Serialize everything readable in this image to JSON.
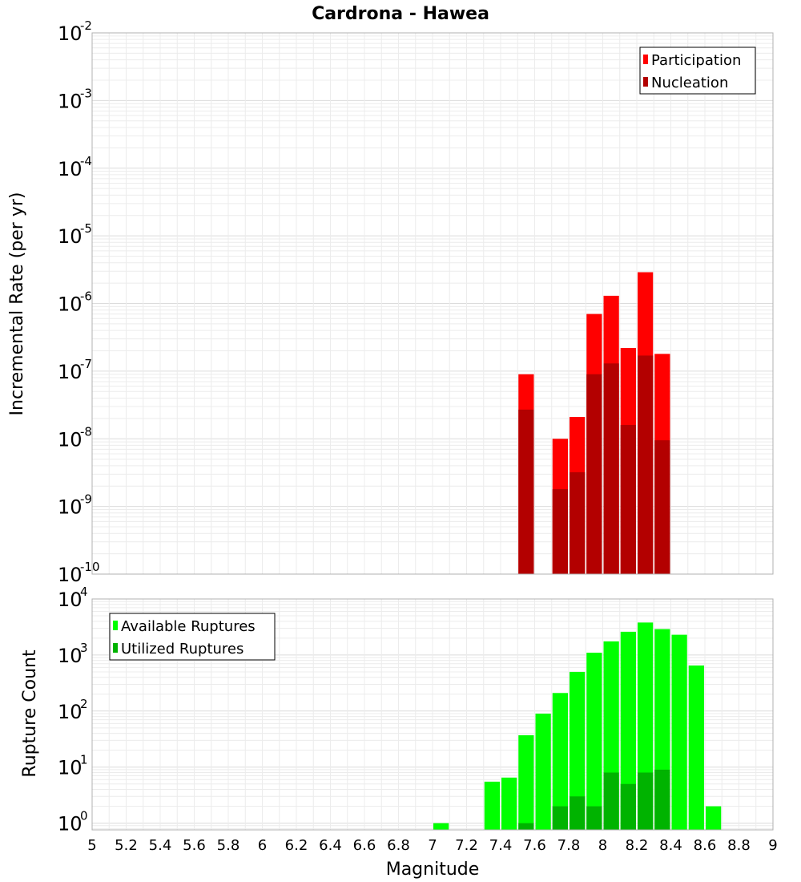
{
  "chart_data": {
    "title": "Cardrona - Hawea",
    "xlabel": "Magnitude",
    "xlim": [
      5,
      9
    ],
    "xticks": [
      "5",
      "5.2",
      "5.4",
      "5.6",
      "5.8",
      "6",
      "6.2",
      "6.4",
      "6.6",
      "6.8",
      "7",
      "7.2",
      "7.4",
      "7.6",
      "7.8",
      "8",
      "8.2",
      "8.4",
      "8.6",
      "8.8",
      "9"
    ],
    "bin_width": 0.1,
    "charts": [
      {
        "id": "rate",
        "type": "bar",
        "yscale": "log",
        "ylabel": "Incremental Rate (per yr)",
        "ylim_exp": [
          -10,
          -2
        ],
        "ytick_exponents": [
          "-10",
          "-9",
          "-8",
          "-7",
          "-6",
          "-5",
          "-4",
          "-3",
          "-2"
        ],
        "ytick_base": "10",
        "legend": {
          "position": "top-right",
          "entries": [
            "Participation",
            "Nucleation"
          ]
        },
        "series": [
          {
            "name": "Participation",
            "color": "#ff0000",
            "x": [
              7.55,
              7.75,
              7.85,
              7.95,
              8.05,
              8.15,
              8.25,
              8.35
            ],
            "values": [
              9e-08,
              1e-08,
              2.1e-08,
              7e-07,
              1.3e-06,
              2.2e-07,
              2.9e-06,
              1.8e-07
            ]
          },
          {
            "name": "Nucleation",
            "color": "#b30000",
            "x": [
              7.55,
              7.75,
              7.85,
              7.95,
              8.05,
              8.15,
              8.25,
              8.35
            ],
            "values": [
              2.7e-08,
              1.8e-09,
              3.2e-09,
              9e-08,
              1.3e-07,
              1.6e-08,
              1.7e-07,
              9.5e-09
            ]
          }
        ]
      },
      {
        "id": "count",
        "type": "bar",
        "yscale": "log",
        "ylabel": "Rupture Count",
        "ylim_exp": [
          -0.12,
          4
        ],
        "ytick_exponents": [
          "0",
          "1",
          "2",
          "3",
          "4"
        ],
        "ytick_base": "10",
        "legend": {
          "position": "top-left",
          "entries": [
            "Available Ruptures",
            "Utilized Ruptures"
          ]
        },
        "series": [
          {
            "name": "Available Ruptures",
            "color": "#00ff00",
            "x": [
              7.05,
              7.35,
              7.45,
              7.55,
              7.65,
              7.75,
              7.85,
              7.95,
              8.05,
              8.15,
              8.25,
              8.35,
              8.45,
              8.55,
              8.65
            ],
            "values": [
              1,
              5.5,
              6.5,
              37,
              90,
              210,
              500,
              1100,
              1750,
              2600,
              3800,
              2900,
              2300,
              650,
              2
            ]
          },
          {
            "name": "Utilized Ruptures",
            "color": "#00b300",
            "x": [
              7.55,
              7.75,
              7.85,
              7.95,
              8.05,
              8.15,
              8.25,
              8.35
            ],
            "values": [
              1,
              2,
              3,
              2,
              8,
              5,
              8,
              9
            ]
          }
        ]
      }
    ]
  }
}
